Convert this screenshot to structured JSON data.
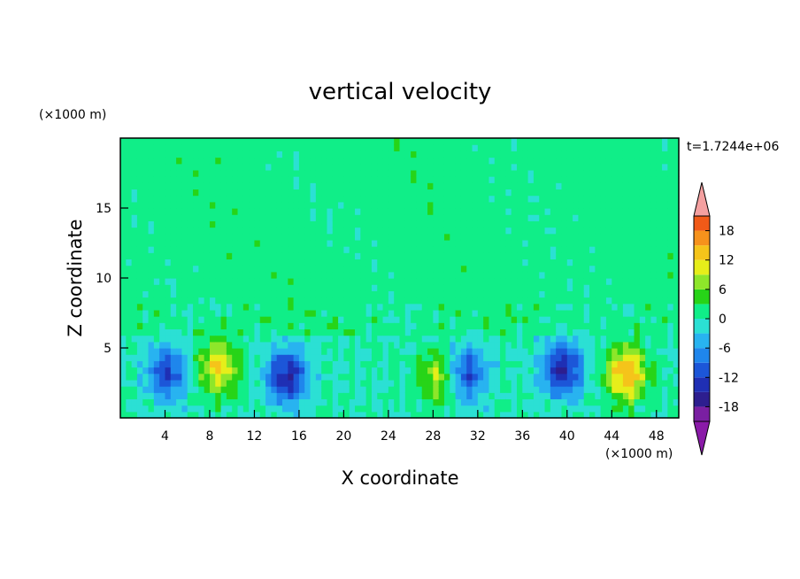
{
  "chart_data": {
    "type": "heatmap",
    "title": "vertical velocity",
    "xlabel": "X coordinate",
    "ylabel": "Z coordinate",
    "x_unit": "(×1000 m)",
    "y_unit": "(×1000 m)",
    "time_label": "t=1.7244e+06",
    "xlim": [
      0,
      50
    ],
    "ylim": [
      0,
      20
    ],
    "x_ticks": [
      4,
      8,
      12,
      16,
      20,
      24,
      28,
      32,
      36,
      40,
      44,
      48
    ],
    "y_ticks": [
      5,
      10,
      15
    ],
    "colorbar": {
      "tick_labels": [
        18,
        12,
        6,
        0,
        -6,
        -12,
        -18
      ],
      "range": [
        -21,
        21
      ],
      "levels": [
        -21,
        -18,
        -15,
        -12,
        -9,
        -6,
        -3,
        0,
        3,
        6,
        9,
        12,
        15,
        18,
        21
      ],
      "colors": [
        "#7a1fa2",
        "#2d1e8f",
        "#1f2fb4",
        "#1c56d8",
        "#1f86ec",
        "#28b3f0",
        "#2be0d4",
        "#10ee88",
        "#27d418",
        "#8ee62a",
        "#e6ee1a",
        "#f5c41a",
        "#f6921c",
        "#f15a18",
        "#e12a12",
        "#f4a0a0"
      ],
      "under_color": "#8a1aa8",
      "over_color": "#f4a0a0"
    },
    "features": [
      {
        "kind": "updraft",
        "x": 8.8,
        "z": 3.6,
        "peak": 12
      },
      {
        "kind": "downdraft",
        "x": 4.2,
        "z": 3.2,
        "peak": -12
      },
      {
        "kind": "downdraft",
        "x": 14.9,
        "z": 3.0,
        "peak": -15
      },
      {
        "kind": "updraft",
        "x": 28.5,
        "z": 3.0,
        "peak": 9
      },
      {
        "kind": "downdraft",
        "x": 31.0,
        "z": 3.2,
        "peak": -12
      },
      {
        "kind": "downdraft",
        "x": 39.6,
        "z": 3.5,
        "peak": -15
      },
      {
        "kind": "updraft",
        "x": 45.3,
        "z": 3.2,
        "peak": 15
      }
    ]
  }
}
